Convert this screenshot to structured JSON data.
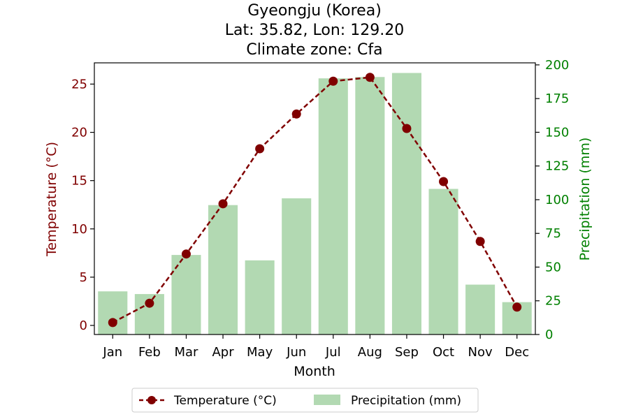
{
  "chart_data": {
    "type": "bar+line",
    "title_lines": [
      "Gyeongju (Korea)",
      "Lat: 35.82, Lon: 129.20",
      "Climate zone: Cfa"
    ],
    "xlabel": "Month",
    "ylabel_left": "Temperature (°C)",
    "ylabel_right": "Precipitation (mm)",
    "categories": [
      "Jan",
      "Feb",
      "Mar",
      "Apr",
      "May",
      "Jun",
      "Jul",
      "Aug",
      "Sep",
      "Oct",
      "Nov",
      "Dec"
    ],
    "temperature": {
      "name": "Temperature (°C)",
      "values": [
        0.3,
        2.3,
        7.4,
        12.6,
        18.3,
        21.9,
        25.3,
        25.7,
        20.4,
        14.9,
        8.7,
        1.9
      ],
      "color": "#800000",
      "ylim": [
        -0.94,
        27.2
      ],
      "ticks": [
        0,
        5,
        10,
        15,
        20,
        25
      ]
    },
    "precipitation": {
      "name": "Precipitation (mm)",
      "values": [
        32,
        30,
        59,
        96,
        55,
        101,
        190,
        191,
        194,
        108,
        37,
        24
      ],
      "color": "#b2d9b2",
      "axis_color": "#008000",
      "ylim": [
        0,
        201.5
      ],
      "ticks": [
        0,
        25,
        50,
        75,
        100,
        125,
        150,
        175,
        200
      ]
    },
    "legend_position": "bottom-center",
    "grid": false
  }
}
